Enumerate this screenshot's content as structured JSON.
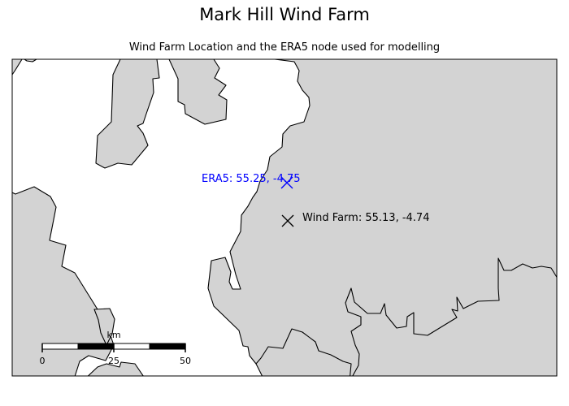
{
  "title": "Mark Hill Wind Farm",
  "subtitle": "Wind Farm Location and the ERA5 node used for modelling",
  "markers": {
    "era5": {
      "label": "ERA5: 55.25, -4.75",
      "lat": 55.25,
      "lon": -4.75,
      "color": "#0000ff",
      "symbol": "x-cross-icon"
    },
    "wind_farm": {
      "label": "Wind Farm: 55.13, -4.74",
      "lat": 55.13,
      "lon": -4.74,
      "color": "#000000",
      "symbol": "x-cross-icon"
    }
  },
  "scale_bar": {
    "unit": "km",
    "ticks": [
      "0",
      "25",
      "50"
    ]
  },
  "colors": {
    "land": "#d3d3d3",
    "sea": "#ffffff",
    "coastline": "#000000"
  }
}
